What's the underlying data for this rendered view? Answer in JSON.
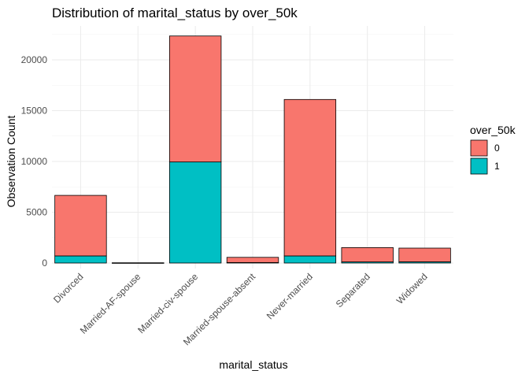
{
  "chart_data": {
    "type": "bar",
    "stacked": true,
    "title": "Distribution of marital_status by over_50k",
    "xlabel": "marital_status",
    "ylabel": "Observation Count",
    "categories": [
      "Divorced",
      "Married-AF-spouse",
      "Married-civ-spouse",
      "Married-spouse-absent",
      "Never-married",
      "Separated",
      "Widowed"
    ],
    "series": [
      {
        "name": "0",
        "color": "#F8766D",
        "values": [
          5960,
          15,
          12400,
          510,
          15400,
          1410,
          1350
        ]
      },
      {
        "name": "1",
        "color": "#00BFC4",
        "values": [
          700,
          10,
          9950,
          50,
          700,
          110,
          120
        ]
      }
    ],
    "yticks": [
      0,
      5000,
      10000,
      15000,
      20000
    ],
    "ylim": [
      0,
      23300
    ],
    "grid": true,
    "legend": {
      "title": "over_50k",
      "position": "right"
    }
  }
}
